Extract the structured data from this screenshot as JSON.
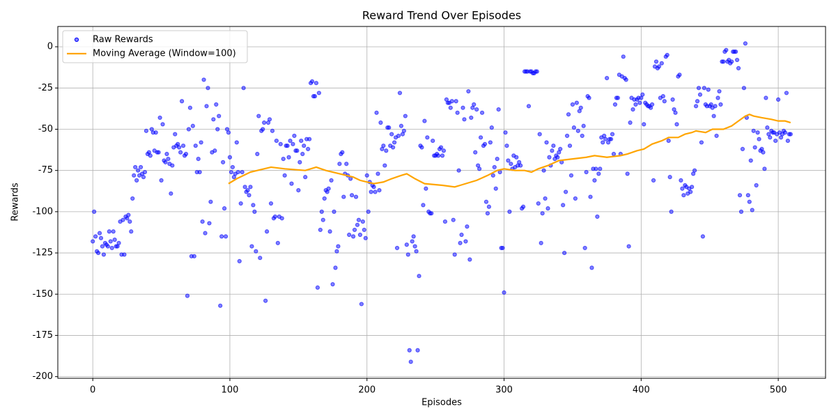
{
  "chart_data": {
    "type": "scatter",
    "title": "Reward Trend Over Episodes",
    "x_label": "Episodes",
    "y_label": "Rewards",
    "xlim": [
      -25.5,
      534.5
    ],
    "xticks": [
      0,
      100,
      200,
      300,
      400,
      500
    ],
    "ylim": [
      -201,
      12.3
    ],
    "yticks": [
      -200,
      -175,
      -150,
      -125,
      -100,
      -75,
      -50,
      -25,
      0
    ],
    "grid": true,
    "legend": "upper left",
    "x": [
      0,
      1,
      2,
      3,
      4,
      5,
      6,
      7,
      8,
      9,
      10,
      11,
      12,
      13,
      14,
      15,
      16,
      17,
      18,
      19,
      20,
      21,
      22,
      23,
      24,
      25,
      26,
      27,
      28,
      29,
      30,
      31,
      32,
      33,
      34,
      35,
      36,
      37,
      38,
      39,
      40,
      41,
      42,
      43,
      44,
      45,
      46,
      47,
      48,
      49,
      50,
      51,
      52,
      53,
      54,
      55,
      56,
      57,
      58,
      59,
      60,
      61,
      62,
      63,
      64,
      65,
      66,
      67,
      68,
      69,
      70,
      71,
      72,
      73,
      74,
      75,
      76,
      77,
      78,
      79,
      80,
      81,
      82,
      83,
      84,
      85,
      86,
      87,
      88,
      89,
      90,
      91,
      92,
      93,
      94,
      95,
      96,
      97,
      98,
      99,
      100,
      101,
      102,
      103,
      104,
      105,
      106,
      107,
      108,
      109,
      110,
      111,
      112,
      113,
      114,
      115,
      116,
      117,
      118,
      119,
      120,
      121,
      122,
      123,
      124,
      125,
      126,
      127,
      128,
      129,
      130,
      131,
      132,
      133,
      134,
      135,
      136,
      137,
      138,
      139,
      140,
      141,
      142,
      143,
      144,
      145,
      146,
      147,
      148,
      149,
      150,
      151,
      152,
      153,
      154,
      155,
      156,
      157,
      158,
      159,
      160,
      161,
      162,
      163,
      164,
      165,
      166,
      167,
      168,
      169,
      170,
      171,
      172,
      173,
      174,
      175,
      176,
      177,
      178,
      179,
      180,
      181,
      182,
      183,
      184,
      185,
      186,
      187,
      188,
      189,
      190,
      191,
      192,
      193,
      194,
      195,
      196,
      197,
      198,
      199,
      200,
      201,
      202,
      203,
      204,
      205,
      206,
      207,
      208,
      209,
      210,
      211,
      212,
      213,
      214,
      215,
      216,
      217,
      218,
      219,
      220,
      221,
      222,
      223,
      224,
      225,
      226,
      227,
      228,
      229,
      230,
      231,
      232,
      233,
      234,
      235,
      236,
      237,
      238,
      239,
      240,
      241,
      242,
      243,
      244,
      245,
      246,
      247,
      248,
      249,
      250,
      251,
      252,
      253,
      254,
      255,
      256,
      257,
      258,
      259,
      260,
      261,
      262,
      263,
      264,
      265,
      266,
      267,
      268,
      269,
      270,
      271,
      272,
      273,
      274,
      275,
      276,
      277,
      278,
      279,
      280,
      281,
      282,
      283,
      284,
      285,
      286,
      287,
      288,
      289,
      290,
      291,
      292,
      293,
      294,
      295,
      296,
      297,
      298,
      299,
      300,
      301,
      302,
      303,
      304,
      305,
      306,
      307,
      308,
      309,
      310,
      311,
      312,
      313,
      314,
      315,
      316,
      317,
      318,
      319,
      320,
      321,
      322,
      323,
      324,
      325,
      326,
      327,
      328,
      329,
      330,
      331,
      332,
      333,
      334,
      335,
      336,
      337,
      338,
      339,
      340,
      341,
      342,
      343,
      344,
      345,
      346,
      347,
      348,
      349,
      350,
      351,
      352,
      353,
      354,
      355,
      356,
      357,
      358,
      359,
      360,
      361,
      362,
      363,
      364,
      365,
      366,
      367,
      368,
      369,
      370,
      371,
      372,
      373,
      374,
      375,
      376,
      377,
      378,
      379,
      380,
      381,
      382,
      383,
      384,
      385,
      386,
      387,
      388,
      389,
      390,
      391,
      392,
      393,
      394,
      395,
      396,
      397,
      398,
      399,
      400,
      401,
      402,
      403,
      404,
      405,
      406,
      407,
      408,
      409,
      410,
      411,
      412,
      413,
      414,
      415,
      416,
      417,
      418,
      419,
      420,
      421,
      422,
      423,
      424,
      425,
      426,
      427,
      428,
      429,
      430,
      431,
      432,
      433,
      434,
      435,
      436,
      437,
      438,
      439,
      440,
      441,
      442,
      443,
      444,
      445,
      446,
      447,
      448,
      449,
      450,
      451,
      452,
      453,
      454,
      455,
      456,
      457,
      458,
      459,
      460,
      461,
      462,
      463,
      464,
      465,
      466,
      467,
      468,
      469,
      470,
      471,
      472,
      473,
      474,
      475,
      476,
      477,
      478,
      479,
      480,
      481,
      482,
      483,
      484,
      485,
      486,
      487,
      488,
      489,
      490,
      491,
      492,
      493,
      494,
      495,
      496,
      497,
      498,
      499,
      500,
      501,
      502,
      503,
      504,
      505,
      506,
      507,
      508,
      509
    ],
    "series": [
      {
        "name": "Raw Rewards",
        "color": "#0000ff",
        "values": [
          -118,
          -100,
          -115,
          -124,
          -125,
          -113,
          -116,
          -121,
          -126,
          -119,
          -120,
          -121,
          -112,
          -118,
          -122,
          -112,
          -117,
          -121,
          -121,
          -119,
          -106,
          -126,
          -105,
          -126,
          -103,
          -104,
          -102,
          -106,
          -112,
          -92,
          -78,
          -73,
          -81,
          -75,
          -78,
          -73,
          -77,
          -79,
          -76,
          -51,
          -65,
          -64,
          -66,
          -50,
          -52,
          -63,
          -52,
          -64,
          -64,
          -43,
          -81,
          -47,
          -69,
          -70,
          -65,
          -68,
          -71,
          -89,
          -72,
          -61,
          -53,
          -60,
          -59,
          -61,
          -64,
          -33,
          -60,
          -66,
          -65,
          -151,
          -50,
          -37,
          -127,
          -48,
          -127,
          -60,
          -76,
          -68,
          -76,
          -58,
          -106,
          -20,
          -113,
          -36,
          -25,
          -107,
          -94,
          -64,
          -44,
          -63,
          -35,
          -50,
          -42,
          -157,
          -115,
          -70,
          -98,
          -115,
          -50,
          -52,
          -67,
          -76,
          -73,
          -79,
          -77,
          -58,
          -76,
          -130,
          -95,
          -76,
          -25,
          -85,
          -88,
          -87,
          -90,
          -85,
          -121,
          -96,
          -100,
          -124,
          -65,
          -42,
          -128,
          -51,
          -50,
          -46,
          -154,
          -112,
          -46,
          -44,
          -95,
          -51,
          -104,
          -103,
          -57,
          -119,
          -103,
          -59,
          -104,
          -68,
          -78,
          -60,
          -60,
          -67,
          -57,
          -83,
          -59,
          -54,
          -63,
          -63,
          -87,
          -70,
          -57,
          -65,
          -60,
          -79,
          -56,
          -62,
          -56,
          -22,
          -21,
          -30,
          -30,
          -22,
          -146,
          -28,
          -111,
          -100,
          -105,
          -92,
          -87,
          -88,
          -86,
          -112,
          -81,
          -144,
          -100,
          -134,
          -124,
          -121,
          -71,
          -65,
          -64,
          -91,
          -77,
          -71,
          -78,
          -114,
          -80,
          -90,
          -115,
          -111,
          -91,
          -108,
          -105,
          -114,
          -156,
          -106,
          -111,
          -116,
          -78,
          -100,
          -82,
          -88,
          -84,
          -85,
          -88,
          -40,
          -77,
          -87,
          -46,
          -62,
          -60,
          -72,
          -63,
          -49,
          -49,
          -60,
          -53,
          -61,
          -58,
          -55,
          -122,
          -54,
          -28,
          -48,
          -53,
          -51,
          -42,
          -120,
          -126,
          -184,
          -191,
          -118,
          -115,
          -121,
          -124,
          -184,
          -139,
          -60,
          -61,
          -96,
          -45,
          -86,
          -55,
          -100,
          -101,
          -101,
          -57,
          -66,
          -66,
          -65,
          -66,
          -62,
          -61,
          -66,
          -63,
          -106,
          -32,
          -34,
          -34,
          -37,
          -33,
          -105,
          -126,
          -33,
          -40,
          -75,
          -119,
          -114,
          -37,
          -44,
          -118,
          -109,
          -27,
          -129,
          -43,
          -37,
          -35,
          -64,
          -38,
          -72,
          -74,
          -55,
          -40,
          -60,
          -59,
          -94,
          -101,
          -97,
          -58,
          -49,
          -78,
          -73,
          -86,
          -68,
          -38,
          -76,
          -122,
          -122,
          -149,
          -52,
          -60,
          -69,
          -100,
          -71,
          -74,
          -66,
          -73,
          -67,
          -72,
          -70,
          -72,
          -98,
          -97,
          -15,
          -15,
          -15,
          -36,
          -15,
          -15,
          -16,
          -16,
          -15,
          -15,
          -95,
          -53,
          -119,
          -101,
          -75,
          -92,
          -58,
          -98,
          -67,
          -72,
          -63,
          -60,
          -68,
          -66,
          -67,
          -64,
          -62,
          -70,
          -96,
          -125,
          -88,
          -54,
          -41,
          -60,
          -78,
          -35,
          -49,
          -92,
          -34,
          -51,
          -39,
          -37,
          -54,
          -48,
          -122,
          -76,
          -30,
          -31,
          -91,
          -134,
          -74,
          -81,
          -74,
          -103,
          -77,
          -74,
          -55,
          -58,
          -54,
          -56,
          -19,
          -58,
          -56,
          -56,
          -53,
          -65,
          -35,
          -31,
          -31,
          -17,
          -65,
          -18,
          -6,
          -19,
          -20,
          -77,
          -121,
          -46,
          -31,
          -38,
          -32,
          -35,
          -32,
          -31,
          -34,
          -31,
          -29,
          -47,
          -34,
          -35,
          -36,
          -36,
          -37,
          -35,
          -81,
          -12,
          -9,
          -13,
          -12,
          -31,
          -10,
          -30,
          -33,
          -6,
          -5,
          -57,
          -79,
          -100,
          -32,
          -38,
          -40,
          -47,
          -18,
          -17,
          -81,
          -86,
          -90,
          -84,
          -85,
          -89,
          -86,
          -88,
          -85,
          -77,
          -75,
          -36,
          -33,
          -25,
          -29,
          -58,
          -115,
          -25,
          -35,
          -36,
          -26,
          -36,
          -35,
          -37,
          -42,
          -36,
          -54,
          -31,
          -27,
          -35,
          -9,
          -9,
          -3,
          -2,
          -9,
          -8,
          -10,
          -9,
          -3,
          -3,
          -3,
          -8,
          -13,
          -90,
          -100,
          -62,
          -25,
          2,
          -43,
          -90,
          -94,
          -69,
          -99,
          -51,
          -61,
          -84,
          -52,
          -56,
          -63,
          -62,
          -64,
          -74,
          -31,
          -49,
          -53,
          -55,
          -51,
          -52,
          -52,
          -57,
          -53,
          -32,
          -52,
          -55,
          -53,
          -51,
          -52,
          -28,
          -57,
          -53,
          -53
        ]
      },
      {
        "name": "Moving Average (Window=100)",
        "color": "#ffa500",
        "type": "line",
        "x": [
          99,
          105,
          115,
          130,
          140,
          155,
          163,
          170,
          180,
          190,
          195,
          205,
          212,
          218,
          225,
          229,
          235,
          242,
          255,
          264,
          268,
          272,
          280,
          288,
          295,
          300,
          308,
          315,
          320,
          325,
          332,
          340,
          350,
          360,
          366,
          375,
          385,
          390,
          397,
          402,
          408,
          415,
          420,
          427,
          432,
          437,
          440,
          447,
          452,
          460,
          466,
          471,
          476,
          479,
          482,
          488,
          495,
          500,
          505,
          509
        ],
        "values": [
          -83,
          -80,
          -76,
          -73,
          -74,
          -75,
          -73,
          -75,
          -77,
          -79,
          -81,
          -83,
          -82,
          -80,
          -78,
          -77,
          -80,
          -83,
          -84,
          -85,
          -84,
          -83,
          -81,
          -78,
          -75,
          -74,
          -75,
          -75,
          -76,
          -74,
          -72,
          -69,
          -68,
          -67,
          -66,
          -67,
          -66,
          -65,
          -63,
          -62,
          -59,
          -57,
          -55,
          -55,
          -53,
          -52,
          -51,
          -52,
          -50,
          -50,
          -48,
          -45,
          -42,
          -41,
          -42,
          -43,
          -44,
          -45,
          -45,
          -46
        ]
      }
    ]
  }
}
